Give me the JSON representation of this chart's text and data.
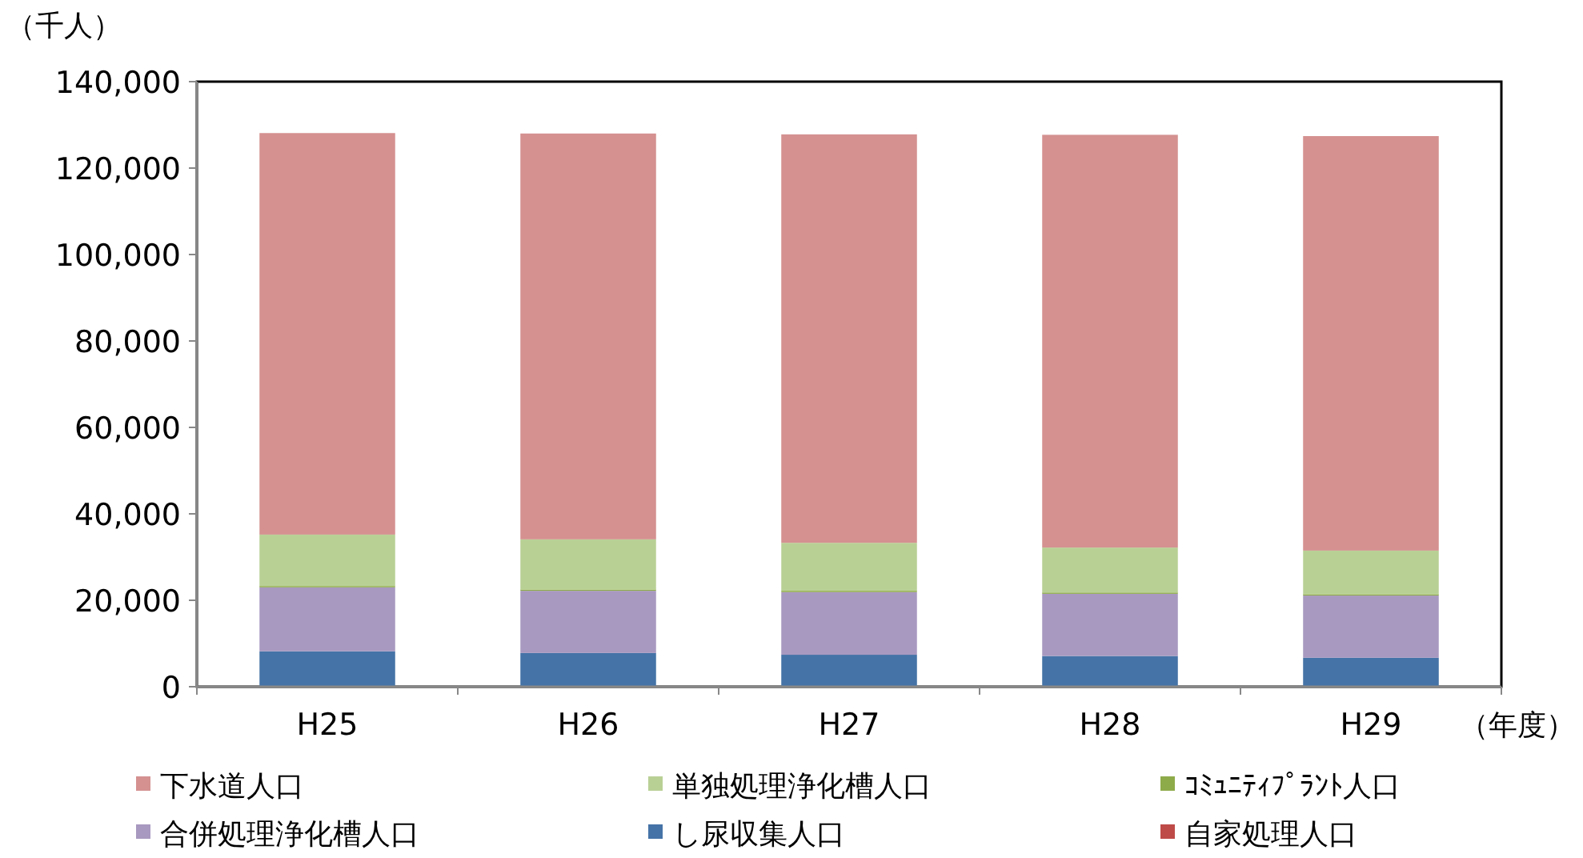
{
  "chart_data": {
    "type": "bar",
    "stacked": true,
    "ylabel": "（千人）",
    "xlabel": "（年度）",
    "categories": [
      "H25",
      "H26",
      "H27",
      "H28",
      "H29"
    ],
    "ylim": [
      0,
      140000
    ],
    "yticks": [
      {
        "value": 0,
        "label": "0"
      },
      {
        "value": 20000,
        "label": "20,000"
      },
      {
        "value": 40000,
        "label": "40,000"
      },
      {
        "value": 60000,
        "label": "60,000"
      },
      {
        "value": 80000,
        "label": "80,000"
      },
      {
        "value": 100000,
        "label": "100,000"
      },
      {
        "value": 120000,
        "label": "120,000"
      },
      {
        "value": 140000,
        "label": "140,000"
      }
    ],
    "legend": "bottom",
    "series": [
      {
        "name": "自家処理人口",
        "color": "#be4b48",
        "values": [
          100,
          100,
          100,
          100,
          100
        ]
      },
      {
        "name": "し尿収集人口",
        "color": "#4573a7",
        "values": [
          8100,
          7700,
          7300,
          7000,
          6600
        ]
      },
      {
        "name": "合併処理浄化槽人口",
        "color": "#a899c0",
        "values": [
          14800,
          14400,
          14500,
          14400,
          14400
        ]
      },
      {
        "name": "ｺﾐｭﾆﾃｨﾌﾟﾗﾝﾄ人口",
        "color": "#8eab4a",
        "values": [
          300,
          300,
          300,
          300,
          300
        ]
      },
      {
        "name": "単独処理浄化槽人口",
        "color": "#b9d095",
        "values": [
          11900,
          11600,
          11100,
          10400,
          10100
        ]
      },
      {
        "name": "下水道人口",
        "color": "#d49190",
        "values": [
          92900,
          93900,
          94500,
          95500,
          95900
        ]
      }
    ]
  }
}
